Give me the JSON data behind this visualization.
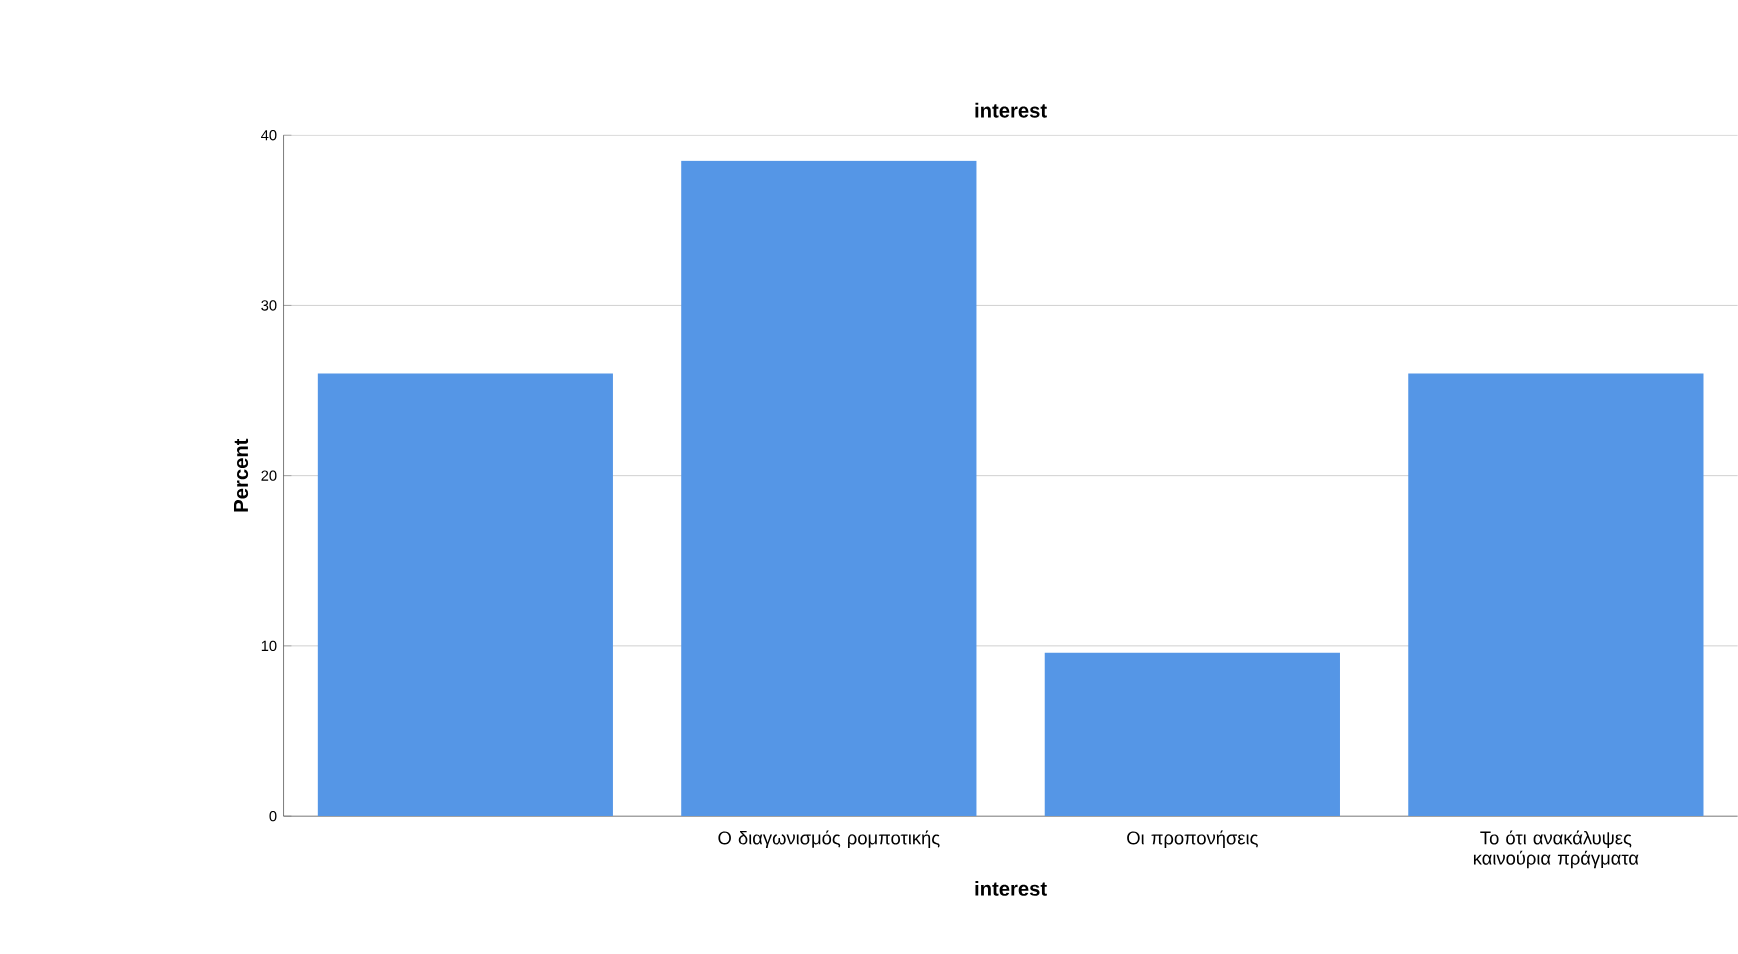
{
  "chart_data": {
    "type": "bar",
    "title": "interest",
    "xlabel": "interest",
    "ylabel": "Percent",
    "categories": [
      null,
      "Ο διαγωνισμός ρομποτικής",
      "Οι προπονήσεις",
      "Το ότι ανακάλυψες καινούρια πράγματα"
    ],
    "values": [
      26,
      38.5,
      9.6,
      26
    ],
    "color": "#5596e6",
    "ylim": [
      0,
      40
    ],
    "yticks": [
      0,
      10,
      20,
      30,
      40
    ],
    "grid": "y"
  }
}
